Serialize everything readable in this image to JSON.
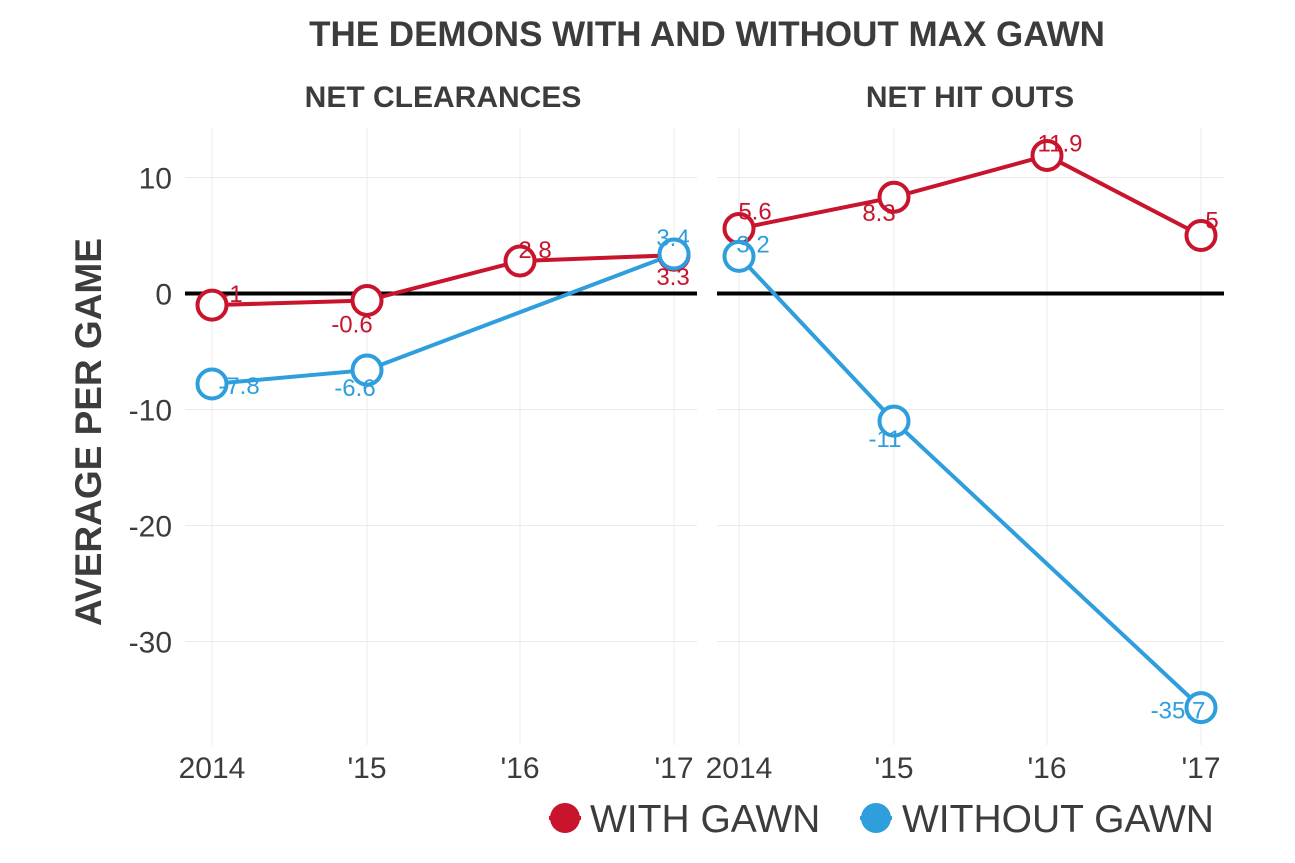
{
  "chart_data": {
    "type": "line",
    "title": "THE DEMONS WITH AND WITHOUT MAX GAWN",
    "ylabel": "AVERAGE PER GAME",
    "ylim": [
      -38.5,
      14.5
    ],
    "yticks": [
      10,
      0,
      -10,
      -20,
      -30
    ],
    "ytick_labels": [
      "10",
      "0",
      "-10",
      "-20",
      "-30"
    ],
    "categories": [
      "2014",
      "'15",
      "'16",
      "'17"
    ],
    "grid": true,
    "legend_position": "bottom-right",
    "colors": {
      "with": "#c8142c",
      "without": "#2f9edc",
      "zero_line": "#000000",
      "text": "#3c3c3c"
    },
    "legend": [
      {
        "label": "WITH GAWN",
        "color": "#c8142c"
      },
      {
        "label": "WITHOUT GAWN",
        "color": "#2f9edc"
      }
    ],
    "panels": [
      {
        "subtitle": "NET CLEARANCES",
        "series": [
          {
            "name": "WITH GAWN",
            "color": "#c8142c",
            "values": [
              -1,
              -0.6,
              2.8,
              3.3
            ],
            "labels": [
              "-1",
              "-0.6",
              "2.8",
              "3.3"
            ]
          },
          {
            "name": "WITHOUT GAWN",
            "color": "#2f9edc",
            "values": [
              -7.8,
              -6.6,
              null,
              3.4
            ],
            "labels": [
              "-7.8",
              "-6.6",
              null,
              "3.4"
            ]
          }
        ]
      },
      {
        "subtitle": "NET HIT OUTS",
        "series": [
          {
            "name": "WITH GAWN",
            "color": "#c8142c",
            "values": [
              5.6,
              8.3,
              11.9,
              5
            ],
            "labels": [
              "5.6",
              "8.3",
              "11.9",
              "5"
            ]
          },
          {
            "name": "WITHOUT GAWN",
            "color": "#2f9edc",
            "values": [
              3.2,
              -11,
              null,
              -35.7
            ],
            "labels": [
              "3.2",
              "-11",
              null,
              "-35.7"
            ]
          }
        ]
      }
    ]
  }
}
